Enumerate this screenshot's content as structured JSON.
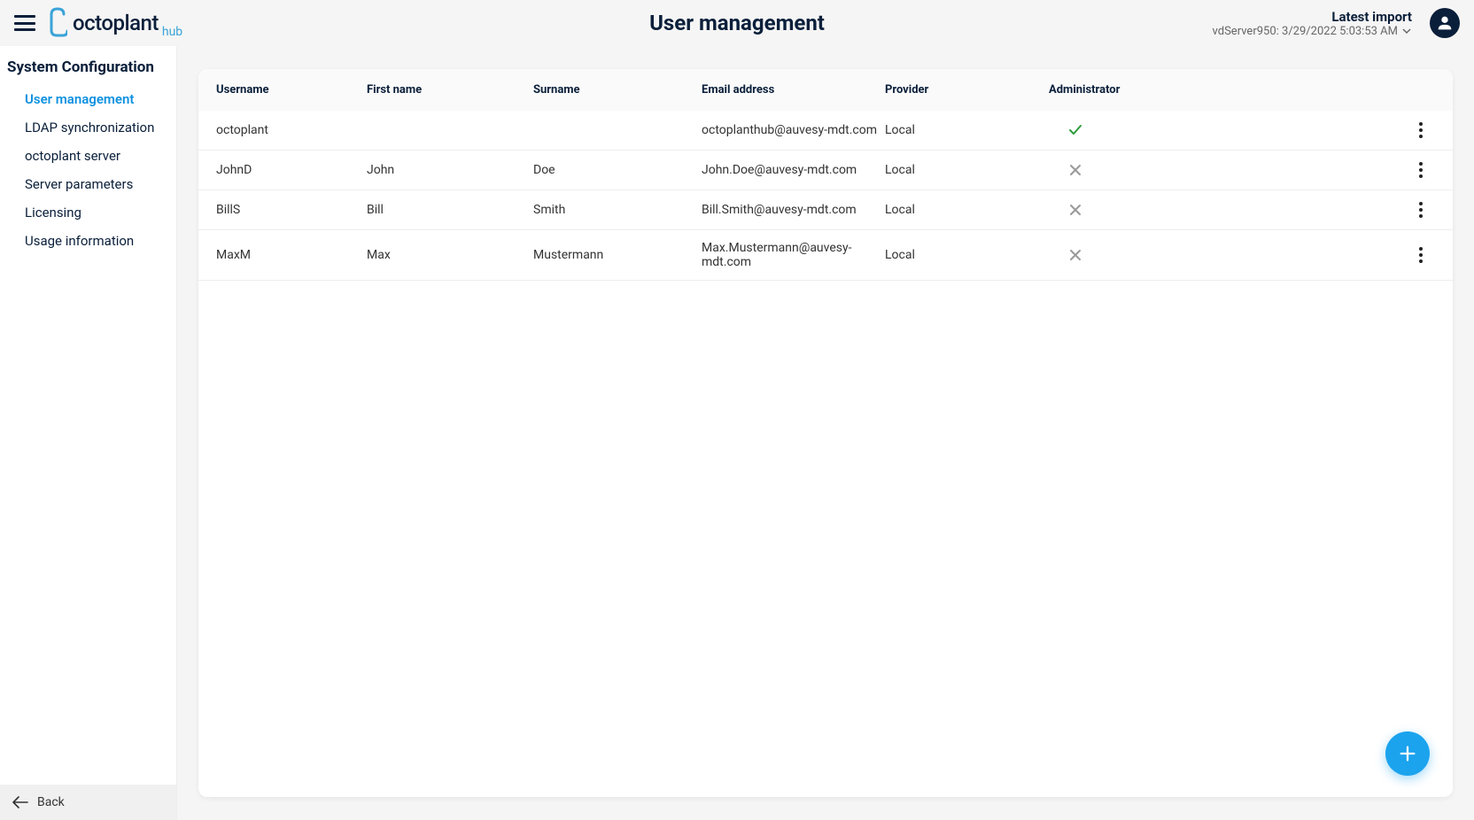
{
  "header": {
    "title": "User management",
    "logo_main": "octoplant",
    "logo_sub": "hub",
    "import_label": "Latest import",
    "import_detail": "vdServer950: 3/29/2022 5:03:53 AM"
  },
  "sidebar": {
    "heading": "System Configuration",
    "items": [
      {
        "label": "User management",
        "active": true
      },
      {
        "label": "LDAP synchronization",
        "active": false
      },
      {
        "label": "octoplant server",
        "active": false
      },
      {
        "label": "Server parameters",
        "active": false
      },
      {
        "label": "Licensing",
        "active": false
      },
      {
        "label": "Usage information",
        "active": false
      }
    ],
    "back_label": "Back"
  },
  "table": {
    "columns": {
      "username": "Username",
      "first_name": "First name",
      "surname": "Surname",
      "email": "Email address",
      "provider": "Provider",
      "admin": "Administrator"
    },
    "rows": [
      {
        "username": "octoplant",
        "first_name": "",
        "surname": "",
        "email": "octoplanthub@auvesy-mdt.com",
        "provider": "Local",
        "admin": true
      },
      {
        "username": "JohnD",
        "first_name": "John",
        "surname": "Doe",
        "email": "John.Doe@auvesy-mdt.com",
        "provider": "Local",
        "admin": false
      },
      {
        "username": "BillS",
        "first_name": "Bill",
        "surname": "Smith",
        "email": "Bill.Smith@auvesy-mdt.com",
        "provider": "Local",
        "admin": false
      },
      {
        "username": "MaxM",
        "first_name": "Max",
        "surname": "Mustermann",
        "email": "Max.Mustermann@auvesy-mdt.com",
        "provider": "Local",
        "admin": false
      }
    ]
  },
  "colors": {
    "primary_text": "#0a1f3a",
    "accent": "#0d91e0",
    "fab": "#1ba3ee",
    "check": "#2e9b3a",
    "cross": "#999999",
    "background": "#f5f5f5",
    "card_bg": "#ffffff",
    "border": "#eeeeee"
  }
}
